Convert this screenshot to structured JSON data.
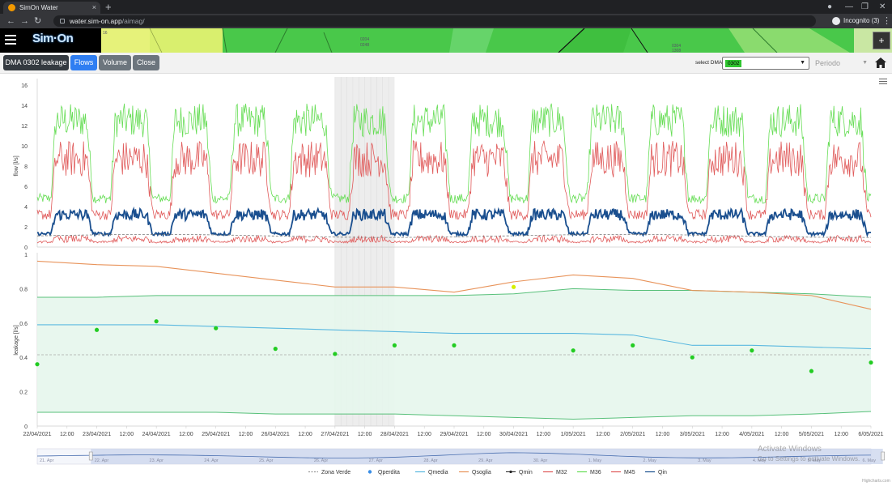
{
  "browser": {
    "tab_title": "SimOn Water",
    "tab_close": "×",
    "new_tab": "+",
    "address_host": "water.sim-on.app",
    "address_path": "/aimag/",
    "incognito_label": "Incognito (3)"
  },
  "app": {
    "logo": "Sim·On",
    "map_labels": [
      "16",
      "0204",
      "0248",
      "0304",
      "1308"
    ],
    "map_plus": "+"
  },
  "toolbar": {
    "title_button": "DMA 0302 leakage",
    "flows_button": "Flows",
    "volume_button": "Volume",
    "close_button": "Close",
    "select_label": "select DMA",
    "select_value": "0302",
    "period_placeholder": "Periodo"
  },
  "overlay": {
    "activate_title": "Activate Windows",
    "activate_sub": "Go to Settings to activate Windows."
  },
  "credits": "Highcharts.com",
  "chart_data": [
    {
      "type": "line",
      "ylabel": "flow [l/s]",
      "ylim": [
        0,
        16
      ],
      "yticks": [
        0,
        2,
        4,
        6,
        8,
        10,
        12,
        14,
        16
      ],
      "x_start": "22/04/2021 00:00",
      "x_end": "06/05/2021 00:00",
      "highlight_band": [
        "27/04/2021 00:00",
        "28/04/2021 00:00"
      ],
      "series": [
        {
          "name": "M36",
          "color": "#66dd55",
          "night": 4.8,
          "day": 12.5,
          "noise": 1.2
        },
        {
          "name": "M32",
          "color": "#e05a5a",
          "night": 3.2,
          "day": 8.7,
          "noise": 1.3
        },
        {
          "name": "Qin",
          "color": "#1a4f8f",
          "night": 1.3,
          "day": 3.2,
          "noise": 0.4
        },
        {
          "name": "M45",
          "color": "#e05a5a",
          "night": 0.5,
          "day": 0.8,
          "noise": 0.25
        },
        {
          "name": "Zona Verde",
          "color": "#777777",
          "night": 1.1,
          "day": 1.2,
          "noise": 0
        }
      ]
    },
    {
      "type": "line",
      "ylabel": "leakage [l/s]",
      "ylim": [
        0,
        1
      ],
      "yticks": [
        "0",
        "0.2",
        "0.4",
        "0.6",
        "0.8",
        "1"
      ],
      "dashed_reference": 0.415,
      "band": {
        "lower": [
          0.08,
          0.08,
          0.08,
          0.08,
          0.07,
          0.07,
          0.07,
          0.06,
          0.05,
          0.04,
          0.05,
          0.06,
          0.06,
          0.07,
          0.085
        ],
        "upper": [
          0.75,
          0.75,
          0.76,
          0.76,
          0.76,
          0.76,
          0.76,
          0.76,
          0.77,
          0.8,
          0.79,
          0.79,
          0.78,
          0.77,
          0.75
        ]
      },
      "series": [
        {
          "name": "Qsoglia",
          "color": "#e8935a",
          "values": [
            0.96,
            0.94,
            0.93,
            0.89,
            0.85,
            0.81,
            0.81,
            0.78,
            0.84,
            0.88,
            0.86,
            0.79,
            0.78,
            0.76,
            0.68
          ]
        },
        {
          "name": "Qmedia",
          "color": "#5ab8e0",
          "values": [
            0.59,
            0.59,
            0.59,
            0.58,
            0.57,
            0.56,
            0.55,
            0.54,
            0.54,
            0.54,
            0.53,
            0.47,
            0.47,
            0.46,
            0.45
          ]
        },
        {
          "name": "Qperdita",
          "color": "#22cc22",
          "points": [
            0.36,
            0.56,
            0.61,
            0.57,
            0.45,
            0.42,
            0.47,
            0.47,
            0.81,
            0.44,
            0.47,
            0.4,
            0.44,
            0.32,
            0.37
          ]
        }
      ],
      "xticks": [
        "22/04/2021",
        "12:00",
        "23/04/2021",
        "12:00",
        "24/04/2021",
        "12:00",
        "25/04/2021",
        "12:00",
        "26/04/2021",
        "12:00",
        "27/04/2021",
        "12:00",
        "28/04/2021",
        "12:00",
        "29/04/2021",
        "12:00",
        "30/04/2021",
        "12:00",
        "1/05/2021",
        "12:00",
        "2/05/2021",
        "12:00",
        "3/05/2021",
        "12:00",
        "4/05/2021",
        "12:00",
        "5/05/2021",
        "12:00",
        "6/05/2021"
      ]
    }
  ],
  "navigator": {
    "labels": [
      "21. Apr",
      "22. Apr",
      "23. Apr",
      "24. Apr",
      "25. Apr",
      "26. Apr",
      "27. Apr",
      "28. Apr",
      "29. Apr",
      "30. Apr",
      "1. May",
      "2. May",
      "3. May",
      "4. May",
      "5. May",
      "6. May"
    ]
  },
  "legend": [
    {
      "name": "Zona Verde",
      "color": "#999999",
      "style": "dash"
    },
    {
      "name": "Qperdita",
      "color": "#3a8ee6",
      "style": "dot"
    },
    {
      "name": "Qmedia",
      "color": "#5ab8e0",
      "style": "line"
    },
    {
      "name": "Qsoglia",
      "color": "#e8935a",
      "style": "line"
    },
    {
      "name": "Qmin",
      "color": "#222222",
      "style": "dotline"
    },
    {
      "name": "M32",
      "color": "#e05a5a",
      "style": "line"
    },
    {
      "name": "M36",
      "color": "#66dd55",
      "style": "line"
    },
    {
      "name": "M45",
      "color": "#e05a5a",
      "style": "line"
    },
    {
      "name": "Qin",
      "color": "#1a4f8f",
      "style": "line"
    }
  ]
}
